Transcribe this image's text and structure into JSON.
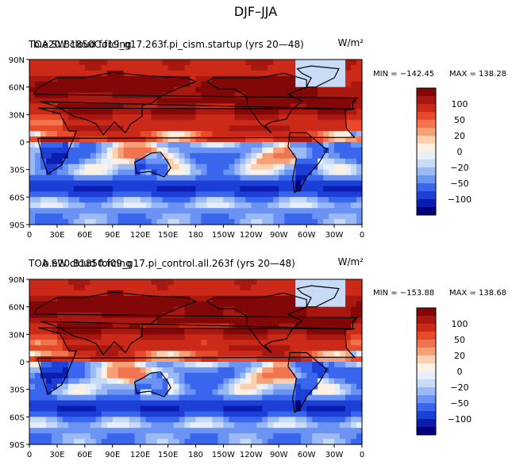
{
  "figure_title": "DJF–JJA",
  "colorbar": {
    "colors": [
      "#00007a",
      "#0a1db0",
      "#1c3fd6",
      "#3a66ee",
      "#6a93f3",
      "#9ab9f5",
      "#c8dbf6",
      "#e7f0fa",
      "#fff1e2",
      "#fbd0b0",
      "#f6a07a",
      "#f1744e",
      "#e64a2a",
      "#cc2a18",
      "#a81810",
      "#820808"
    ],
    "tick_labels": [
      "100",
      "50",
      "20",
      "0",
      "−20",
      "−50",
      "−100"
    ],
    "tick_values": [
      100,
      50,
      20,
      0,
      -20,
      -50,
      -100
    ]
  },
  "chart_data": [
    {
      "type": "heatmap",
      "title_overlap_a": "TOA SW cloud forcing",
      "title_overlap_b": "b.e20.B1850C.f19_g17.263f.pi_cism.startup (yrs 20—48)",
      "units": "W/m²",
      "min_label": "MIN = −142.45",
      "max_label": "MAX = 138.28",
      "min": -142.45,
      "max": 138.28,
      "x_ticks": [
        "0",
        "30E",
        "60E",
        "90E",
        "120E",
        "150E",
        "180",
        "150W",
        "120W",
        "90W",
        "60W",
        "30W",
        "0"
      ],
      "y_ticks": [
        "90N",
        "60N",
        "30N",
        "0",
        "30S",
        "60S",
        "90S"
      ],
      "xlim": [
        0,
        360
      ],
      "ylim": [
        -90,
        90
      ]
    },
    {
      "type": "heatmap",
      "title_overlap_a": "TOA SW cloud forcing",
      "title_overlap_b": "b.e20.B1850.f09_g17.pi_control.all.263f (yrs 20—48)",
      "units": "W/m²",
      "min_label": "MIN = −153.88",
      "max_label": "MAX = 138.68",
      "min": -153.88,
      "max": 138.68,
      "x_ticks": [
        "0",
        "30E",
        "60E",
        "90E",
        "120E",
        "150E",
        "180",
        "150W",
        "120W",
        "90W",
        "60W",
        "30W",
        "0"
      ],
      "y_ticks": [
        "90N",
        "60N",
        "30N",
        "0",
        "30S",
        "60S",
        "90S"
      ],
      "xlim": [
        0,
        360
      ],
      "ylim": [
        -90,
        90
      ]
    }
  ]
}
